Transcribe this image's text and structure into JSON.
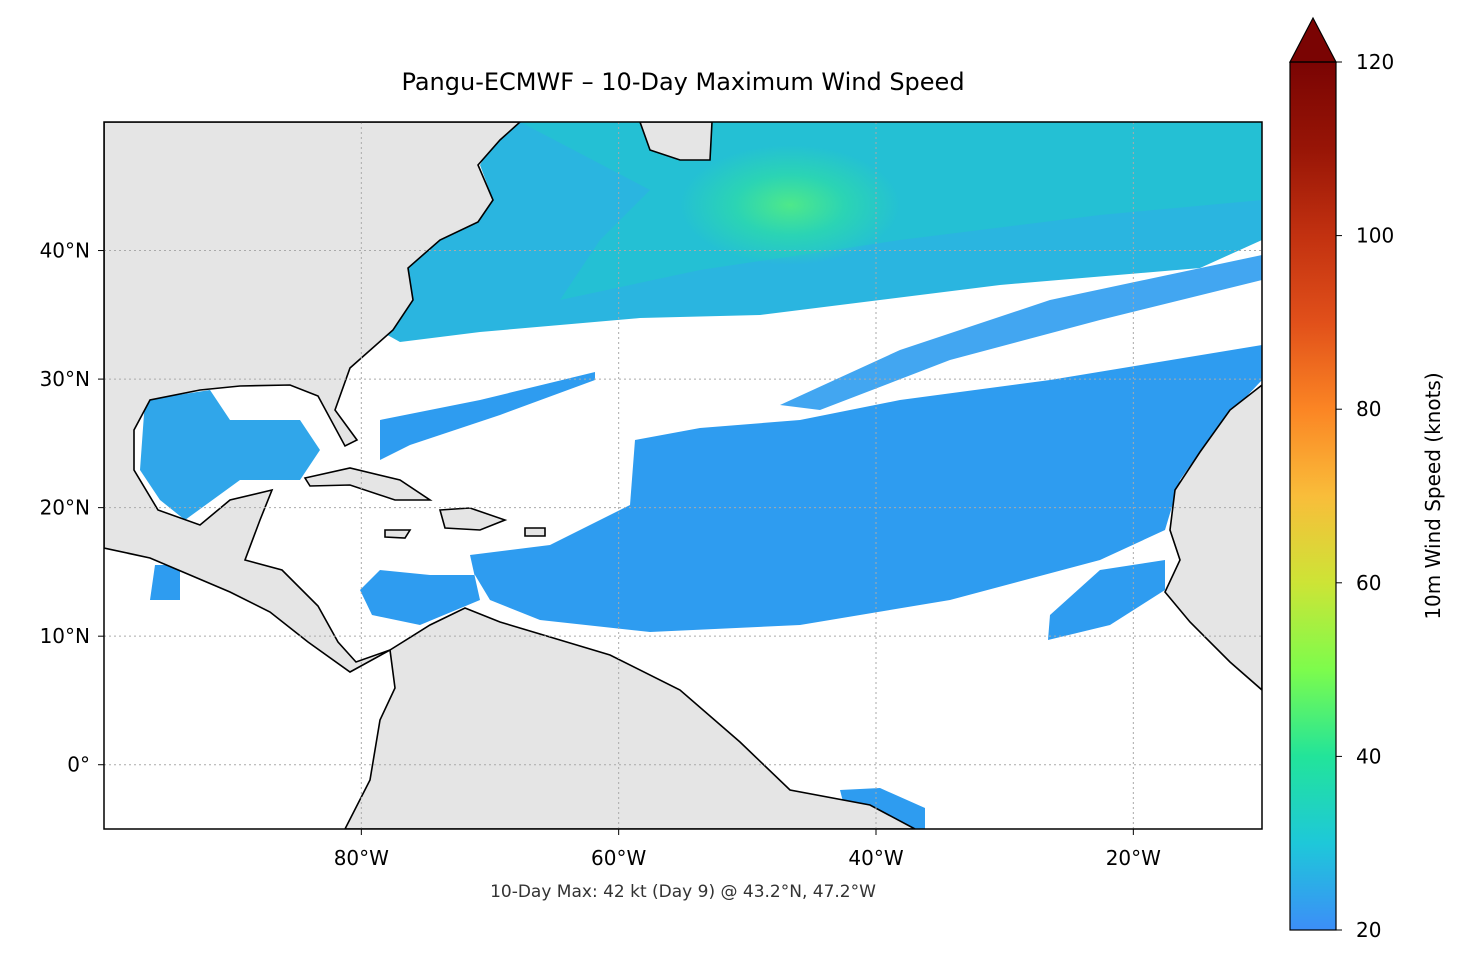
{
  "chart_data": {
    "type": "map",
    "title": "Pangu-ECMWF – 10-Day Maximum Wind Speed",
    "annotation": "10-Day Max: 42 kt (Day 9) @ 43.2°N, 47.2°W",
    "xlim": [
      -100,
      -10
    ],
    "ylim": [
      -5,
      50
    ],
    "xticks": [
      {
        "value": -80,
        "label": "80°W"
      },
      {
        "value": -60,
        "label": "60°W"
      },
      {
        "value": -40,
        "label": "40°W"
      },
      {
        "value": -20,
        "label": "20°W"
      }
    ],
    "yticks": [
      {
        "value": 0,
        "label": "0°"
      },
      {
        "value": 10,
        "label": "10°N"
      },
      {
        "value": 20,
        "label": "20°N"
      },
      {
        "value": 30,
        "label": "30°N"
      },
      {
        "value": 40,
        "label": "40°N"
      }
    ],
    "grid": true,
    "colorbar": {
      "label": "10m Wind Speed (knots)",
      "lim": [
        20,
        120
      ],
      "ticks": [
        20,
        40,
        60,
        80,
        100,
        120
      ],
      "extend": "max",
      "colors": [
        "#3c8ef8",
        "#1ec8d9",
        "#22e49a",
        "#7dfc4c",
        "#cde436",
        "#f9bd3a",
        "#fb8524",
        "#e1501a",
        "#c23110",
        "#981506",
        "#7a0403"
      ]
    }
  }
}
